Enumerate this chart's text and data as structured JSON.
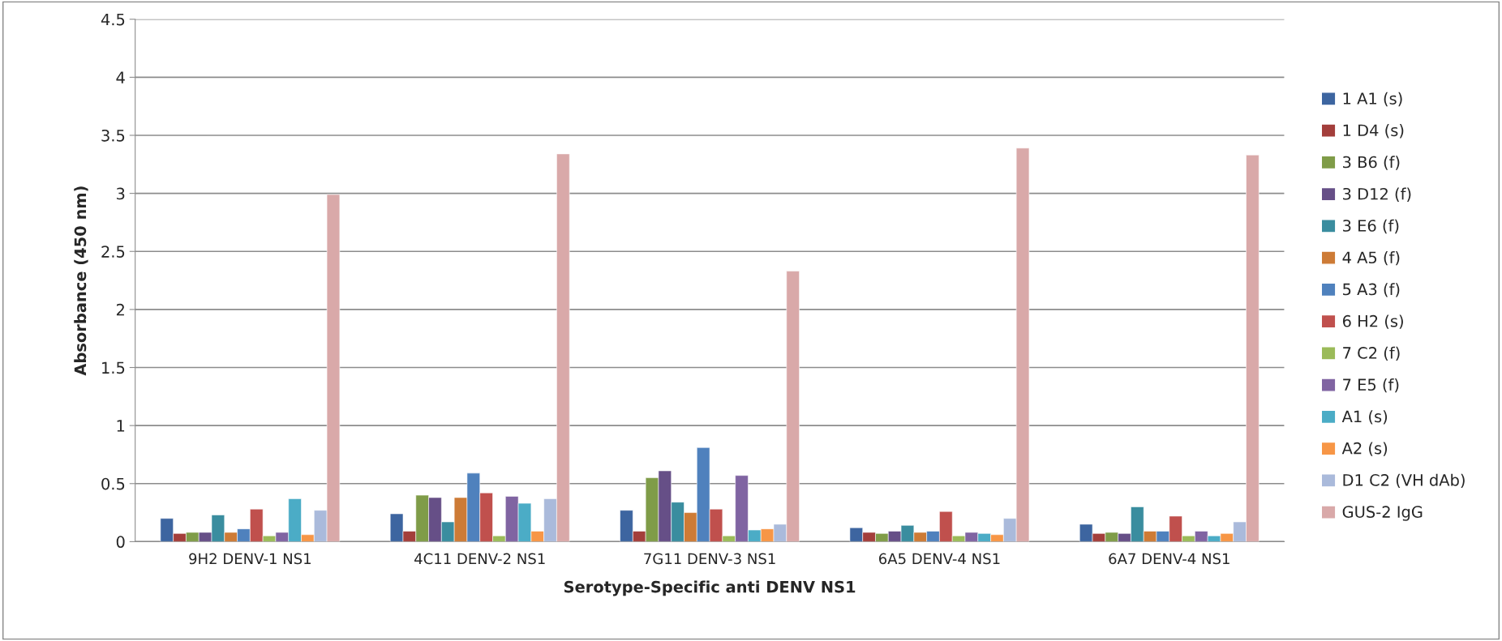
{
  "chart_data": {
    "type": "bar",
    "xlabel": "Serotype-Specific anti DENV NS1",
    "ylabel": "Absorbance (450 nm)",
    "categories": [
      "9H2 DENV-1 NS1",
      "4C11 DENV-2 NS1",
      "7G11 DENV-3 NS1",
      "6A5 DENV-4 NS1",
      "6A7 DENV-4 NS1"
    ],
    "series": [
      {
        "name": "1 A1 (s)",
        "color": "#3d65a0",
        "values": [
          0.2,
          0.24,
          0.27,
          0.12,
          0.15
        ]
      },
      {
        "name": "1 D4 (s)",
        "color": "#a33e3b",
        "values": [
          0.07,
          0.09,
          0.09,
          0.08,
          0.07
        ]
      },
      {
        "name": "3 B6 (f)",
        "color": "#7f9c48",
        "values": [
          0.08,
          0.4,
          0.55,
          0.07,
          0.08
        ]
      },
      {
        "name": "3 D12 (f)",
        "color": "#664f87",
        "values": [
          0.08,
          0.38,
          0.61,
          0.09,
          0.07
        ]
      },
      {
        "name": "3 E6 (f)",
        "color": "#3a8d9f",
        "values": [
          0.23,
          0.17,
          0.34,
          0.14,
          0.3
        ]
      },
      {
        "name": "4 A5 (f)",
        "color": "#cd7b36",
        "values": [
          0.08,
          0.38,
          0.25,
          0.08,
          0.09
        ]
      },
      {
        "name": "5 A3 (f)",
        "color": "#4f81bd",
        "values": [
          0.11,
          0.59,
          0.81,
          0.09,
          0.09
        ]
      },
      {
        "name": "6 H2 (s)",
        "color": "#c0504d",
        "values": [
          0.28,
          0.42,
          0.28,
          0.26,
          0.22
        ]
      },
      {
        "name": "7 C2 (f)",
        "color": "#9bbb59",
        "values": [
          0.05,
          0.05,
          0.05,
          0.05,
          0.05
        ]
      },
      {
        "name": "7 E5 (f)",
        "color": "#8064a2",
        "values": [
          0.08,
          0.39,
          0.57,
          0.08,
          0.09
        ]
      },
      {
        "name": "A1 (s)",
        "color": "#4bacc6",
        "values": [
          0.37,
          0.33,
          0.1,
          0.07,
          0.05
        ]
      },
      {
        "name": "A2 (s)",
        "color": "#f79646",
        "values": [
          0.06,
          0.09,
          0.11,
          0.06,
          0.07
        ]
      },
      {
        "name": "D1 C2 (VH dAb)",
        "color": "#aabadb",
        "values": [
          0.27,
          0.37,
          0.15,
          0.2,
          0.17
        ]
      },
      {
        "name": "GUS-2 IgG",
        "color": "#d9a9a9",
        "values": [
          2.99,
          3.34,
          2.33,
          3.39,
          3.33
        ]
      }
    ],
    "ylim": [
      0,
      4.5
    ],
    "yticks": [
      0,
      0.5,
      1,
      1.5,
      2,
      2.5,
      3,
      3.5,
      4,
      4.5
    ],
    "grid": "y",
    "legend": "right"
  }
}
